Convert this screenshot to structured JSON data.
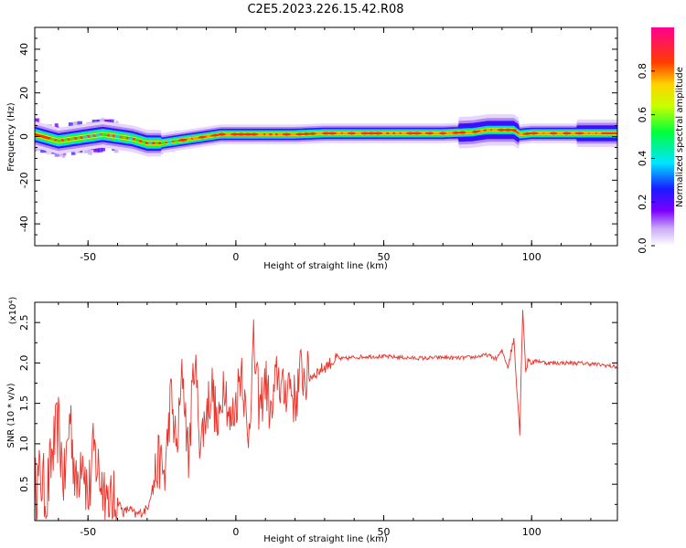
{
  "chart_data": [
    {
      "type": "heatmap",
      "title": "C2E5.2023.226.15.42.R08",
      "xlabel": "Height of straight line (km)",
      "ylabel": "Frequency (Hz)",
      "xlim": [
        -68,
        129
      ],
      "ylim": [
        -50,
        50
      ],
      "xticks": [
        -50,
        0,
        50,
        100
      ],
      "yticks": [
        -40,
        -20,
        0,
        20,
        40
      ],
      "colorbar": {
        "label": "Normalized spectral amplitude",
        "range": [
          0.0,
          1.0
        ],
        "ticks": [
          "0.0",
          "0.2",
          "0.4",
          "0.6",
          "0.8"
        ],
        "colormap": "rainbow (white → purple → blue → cyan → green → yellow → orange → red → magenta)"
      },
      "ridge": {
        "description": "Peak spectral frequency vs height",
        "x": [
          -68,
          -60,
          -50,
          -45,
          -40,
          -35,
          -30,
          -25,
          -20,
          -15,
          -10,
          -5,
          0,
          10,
          20,
          30,
          40,
          50,
          60,
          70,
          80,
          85,
          90,
          94,
          96,
          100,
          110,
          120,
          129
        ],
        "y": [
          1,
          -2,
          0,
          1,
          0,
          -1,
          -3,
          -3,
          -2,
          -1,
          0,
          1,
          1,
          1,
          1,
          1.5,
          1.5,
          1.5,
          1.5,
          1.5,
          2,
          3,
          3,
          3,
          1,
          1.5,
          1.5,
          1.5,
          1.5
        ]
      }
    },
    {
      "type": "line",
      "title": "",
      "xlabel": "Height of straight line (km)",
      "ylabel": "SNR (10 * v/v)",
      "scale_label": "(x10⁴)",
      "xlim": [
        -68,
        129
      ],
      "ylim": [
        0.05,
        2.75
      ],
      "xticks": [
        -50,
        0,
        50,
        100
      ],
      "yticks": [
        0.5,
        1.0,
        1.5,
        2.0,
        2.5
      ],
      "color": "#e8352c",
      "x": [
        -68,
        -66,
        -64,
        -62,
        -60,
        -58,
        -56,
        -54,
        -52,
        -50,
        -48,
        -46,
        -44,
        -42,
        -40,
        -38,
        -36,
        -34,
        -32,
        -30,
        -28,
        -26,
        -24,
        -22,
        -20,
        -18,
        -16,
        -14,
        -12,
        -10,
        -8,
        -6,
        -4,
        -2,
        0,
        2,
        4,
        6,
        8,
        10,
        12,
        14,
        16,
        18,
        20,
        22,
        24,
        26,
        28,
        30,
        32,
        34,
        36,
        40,
        45,
        50,
        55,
        60,
        65,
        70,
        75,
        80,
        85,
        88,
        90,
        92,
        94,
        95,
        96,
        97,
        98,
        99,
        100,
        102,
        105,
        110,
        115,
        120,
        125,
        129
      ],
      "y": [
        0.4,
        0.6,
        0.3,
        0.9,
        1.2,
        0.5,
        1.4,
        0.4,
        1.0,
        0.3,
        0.9,
        0.6,
        0.4,
        0.2,
        0.3,
        0.15,
        0.2,
        0.12,
        0.15,
        0.2,
        0.5,
        0.8,
        0.6,
        1.6,
        0.9,
        1.9,
        0.8,
        2.1,
        1.0,
        1.4,
        1.7,
        1.1,
        1.9,
        1.2,
        1.5,
        2.0,
        1.0,
        2.2,
        1.4,
        1.8,
        1.3,
        1.9,
        1.6,
        1.8,
        1.5,
        1.9,
        1.8,
        1.85,
        1.9,
        1.95,
        2.0,
        2.05,
        2.05,
        2.07,
        2.08,
        2.08,
        2.07,
        2.06,
        2.06,
        2.07,
        2.06,
        2.07,
        2.1,
        2.05,
        2.15,
        1.95,
        2.3,
        1.7,
        1.15,
        2.7,
        1.9,
        2.05,
        2.0,
        2.03,
        2.0,
        2.0,
        2.0,
        1.99,
        1.97,
        1.95
      ]
    }
  ]
}
